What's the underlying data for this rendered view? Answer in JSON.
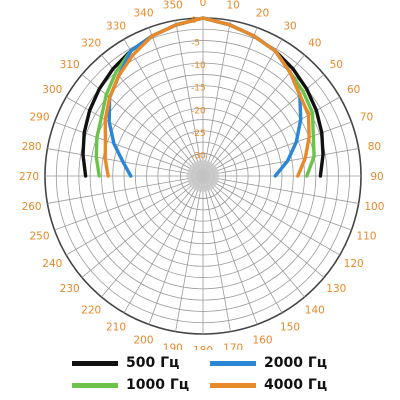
{
  "chart_data": {
    "type": "polar-line",
    "angular_tick_labels": [
      "0",
      "10",
      "20",
      "30",
      "40",
      "50",
      "60",
      "70",
      "80",
      "90",
      "100",
      "110",
      "120",
      "130",
      "140",
      "150",
      "160",
      "170",
      "180",
      "190",
      "200",
      "210",
      "220",
      "230",
      "240",
      "250",
      "260",
      "270",
      "280",
      "290",
      "300",
      "310",
      "320",
      "330",
      "340",
      "350"
    ],
    "radial_tick_labels": [
      "0",
      "-5",
      "-10",
      "-15",
      "-20",
      "-25",
      "-30"
    ],
    "radial_range": [
      -35,
      0
    ],
    "series": [
      {
        "name": "500 Гц",
        "color": "#111111",
        "points": [
          [
            0,
            0
          ],
          [
            10,
            -1
          ],
          [
            20,
            -2
          ],
          [
            30,
            -3
          ],
          [
            40,
            -4
          ],
          [
            50,
            -5
          ],
          [
            60,
            -6
          ],
          [
            70,
            -7
          ],
          [
            80,
            -8
          ],
          [
            90,
            -9
          ],
          [
            270,
            -9
          ],
          [
            280,
            -8
          ],
          [
            290,
            -7
          ],
          [
            300,
            -6
          ],
          [
            310,
            -5
          ],
          [
            320,
            -4
          ],
          [
            330,
            -3
          ],
          [
            340,
            -2
          ],
          [
            350,
            -1
          ]
        ]
      },
      {
        "name": "1000 Гц",
        "color": "#6cc24a",
        "points": [
          [
            0,
            0
          ],
          [
            10,
            -1
          ],
          [
            20,
            -2
          ],
          [
            30,
            -3
          ],
          [
            40,
            -5
          ],
          [
            50,
            -6
          ],
          [
            60,
            -7
          ],
          [
            70,
            -9
          ],
          [
            80,
            -10
          ],
          [
            90,
            -12
          ],
          [
            270,
            -12
          ],
          [
            280,
            -11
          ],
          [
            290,
            -10
          ],
          [
            300,
            -9
          ],
          [
            310,
            -7
          ],
          [
            320,
            -5
          ],
          [
            330,
            -3
          ],
          [
            340,
            -2
          ],
          [
            350,
            -1
          ]
        ]
      },
      {
        "name": "2000 Гц",
        "color": "#2b86d6",
        "points": [
          [
            0,
            0
          ],
          [
            10,
            -1
          ],
          [
            20,
            -2
          ],
          [
            30,
            -3
          ],
          [
            40,
            -5
          ],
          [
            50,
            -7
          ],
          [
            60,
            -10
          ],
          [
            70,
            -13
          ],
          [
            80,
            -16
          ],
          [
            90,
            -19
          ],
          [
            270,
            -19
          ],
          [
            280,
            -17
          ],
          [
            290,
            -14
          ],
          [
            300,
            -11
          ],
          [
            310,
            -8
          ],
          [
            320,
            -6
          ],
          [
            330,
            -3
          ],
          [
            340,
            -2
          ],
          [
            350,
            -1
          ]
        ]
      },
      {
        "name": "4000 Гц",
        "color": "#e8892a",
        "points": [
          [
            0,
            0
          ],
          [
            10,
            -1
          ],
          [
            20,
            -2
          ],
          [
            30,
            -3
          ],
          [
            40,
            -5
          ],
          [
            50,
            -7
          ],
          [
            60,
            -8
          ],
          [
            70,
            -10
          ],
          [
            80,
            -12
          ],
          [
            90,
            -14
          ],
          [
            270,
            -14
          ],
          [
            280,
            -13
          ],
          [
            290,
            -12
          ],
          [
            300,
            -10
          ],
          [
            310,
            -8
          ],
          [
            320,
            -6
          ],
          [
            330,
            -4
          ],
          [
            340,
            -2
          ],
          [
            350,
            -1
          ]
        ]
      }
    ]
  },
  "legend": [
    {
      "label": "500 Гц",
      "color": "#111111"
    },
    {
      "label": "2000 Гц",
      "color": "#2b86d6"
    },
    {
      "label": "1000 Гц",
      "color": "#6cc24a"
    },
    {
      "label": "4000 Гц",
      "color": "#e8892a"
    }
  ]
}
